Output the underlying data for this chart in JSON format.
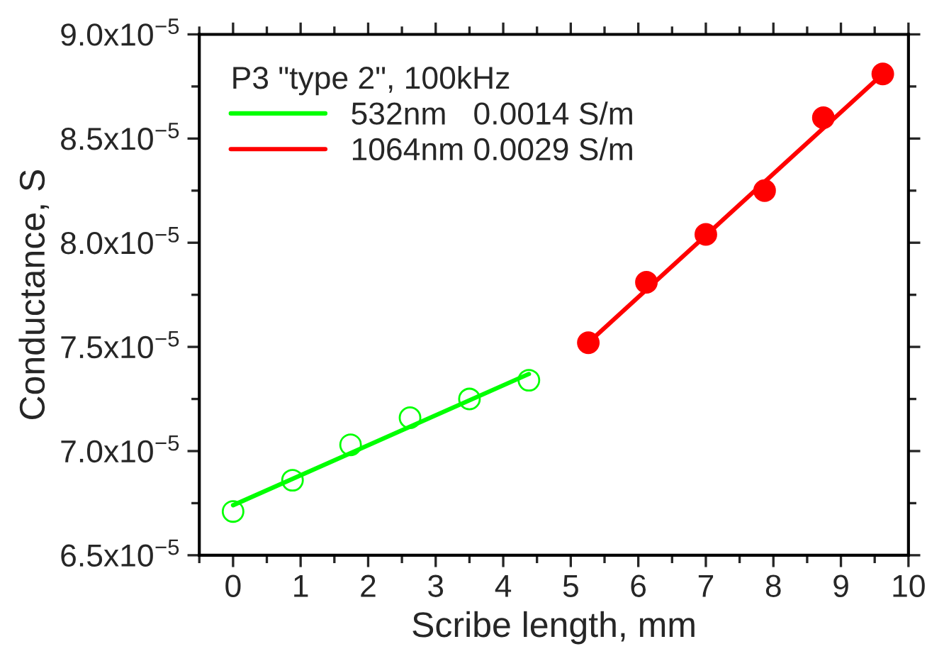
{
  "chart_data": {
    "type": "scatter",
    "xlabel": "Scribe length, mm",
    "ylabel": "Conductance, S",
    "legend_title": "P3 \"type 2\", 100kHz",
    "xlim": [
      -0.5,
      10
    ],
    "xticks": [
      0,
      1,
      2,
      3,
      4,
      5,
      6,
      7,
      8,
      9,
      10
    ],
    "ylim": [
      6.5e-05,
      9e-05
    ],
    "yticks": [
      {
        "value": 6.5e-05,
        "label": "6.5x10$^{−5}$"
      },
      {
        "value": 7e-05,
        "label": "7.0x10$^{−5}$"
      },
      {
        "value": 7.5e-05,
        "label": "7.5x10$^{−5}$"
      },
      {
        "value": 8e-05,
        "label": "8.0x10$^{−5}$"
      },
      {
        "value": 8.5e-05,
        "label": "8.5x10$^{−5}$"
      },
      {
        "value": 9e-05,
        "label": "9.0x10$^{−5}$"
      }
    ],
    "grid": false,
    "legend": "top left",
    "series": [
      {
        "color": "#00ff00",
        "marker": "circle",
        "x": [
          0,
          0.88,
          1.74,
          2.62,
          3.5,
          4.38
        ],
        "values": [
          6.71e-05,
          6.86e-05,
          7.03e-05,
          7.16e-05,
          7.25e-05,
          7.34e-05
        ]
      },
      {
        "color": "#ff0000",
        "marker": "circle",
        "x": [
          5.26,
          6.12,
          7.0,
          7.87,
          8.74,
          9.62
        ],
        "values": [
          7.52e-05,
          7.81e-05,
          8.04e-05,
          8.25e-05,
          8.6e-05,
          8.81e-05
        ]
      },
      {
        "type": "line",
        "name": "532nm   0.0014 S/m",
        "color": "#00ff00",
        "marker": "none",
        "x": [
          0,
          4.38
        ],
        "values": [
          6.74e-05,
          7.37e-05
        ]
      },
      {
        "type": "line",
        "name": "1064nm 0.0029 S/m",
        "color": "#ff0000",
        "marker": "none",
        "x": [
          5.26,
          9.62
        ],
        "values": [
          7.52e-05,
          8.81e-05
        ]
      }
    ]
  }
}
